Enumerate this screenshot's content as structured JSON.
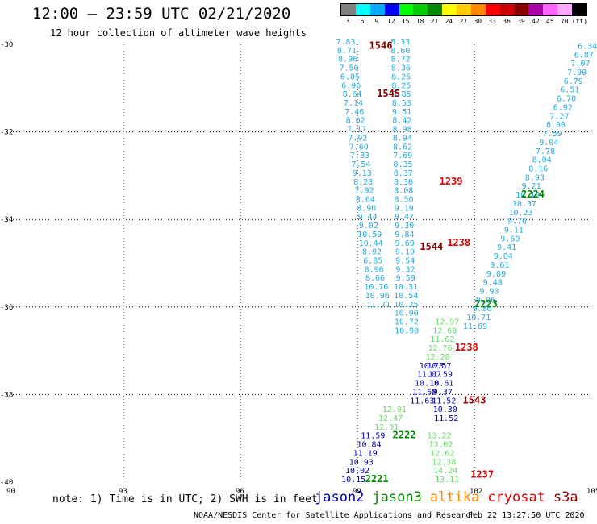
{
  "header": {
    "title": "12:00 – 23:59 UTC 02/21/2020",
    "subtitle": "12 hour collection of altimeter wave heights"
  },
  "legend": {
    "unit": "(ft)",
    "bins": [
      {
        "label": "3",
        "color": "#808080"
      },
      {
        "label": "6",
        "color": "#00ffff"
      },
      {
        "label": "9",
        "color": "#00aaff"
      },
      {
        "label": "12",
        "color": "#0000ff"
      },
      {
        "label": "15",
        "color": "#00ff00"
      },
      {
        "label": "18",
        "color": "#00cc00"
      },
      {
        "label": "21",
        "color": "#008800"
      },
      {
        "label": "24",
        "color": "#ffff00"
      },
      {
        "label": "27",
        "color": "#ffcc00"
      },
      {
        "label": "30",
        "color": "#ff8800"
      },
      {
        "label": "33",
        "color": "#ff0000"
      },
      {
        "label": "36",
        "color": "#cc0000"
      },
      {
        "label": "39",
        "color": "#880000"
      },
      {
        "label": "42",
        "color": "#aa00aa"
      },
      {
        "label": "45",
        "color": "#ff66ff"
      },
      {
        "label": "70",
        "color": "#ffaaff"
      },
      {
        "label": "",
        "color": "#000000"
      }
    ]
  },
  "axes": {
    "lat_ticks": [
      "-30",
      "-32",
      "-34",
      "-36",
      "-38",
      "-40"
    ],
    "lon_ticks": [
      "90",
      "93",
      "96",
      "99",
      "102",
      "105"
    ]
  },
  "colors": {
    "jason2": "#0000aa",
    "jason3": "#008800",
    "altika": "#ff8800",
    "cryosat": "#dd0000",
    "s3a": "#880000",
    "light_blue": "#22aadd",
    "light_green": "#66dd66"
  },
  "time_labels": [
    {
      "text": "1546",
      "lon": 99.6,
      "lat": -30.1,
      "color": "#880000"
    },
    {
      "text": "1545",
      "lon": 99.8,
      "lat": -31.2,
      "color": "#880000"
    },
    {
      "text": "1239",
      "lon": 101.4,
      "lat": -33.2,
      "color": "#dd0000"
    },
    {
      "text": "1238",
      "lon": 101.6,
      "lat": -34.6,
      "color": "#dd0000"
    },
    {
      "text": "1544",
      "lon": 100.9,
      "lat": -34.7,
      "color": "#880000"
    },
    {
      "text": "1238",
      "lon": 101.8,
      "lat": -37.0,
      "color": "#dd0000"
    },
    {
      "text": "1543",
      "lon": 102.0,
      "lat": -38.2,
      "color": "#880000"
    },
    {
      "text": "1237",
      "lon": 102.2,
      "lat": -39.9,
      "color": "#dd0000"
    },
    {
      "text": "2224",
      "lon": 103.5,
      "lat": -33.5,
      "color": "#008800"
    },
    {
      "text": "2223",
      "lon": 102.3,
      "lat": -36.0,
      "color": "#008800"
    },
    {
      "text": "2222",
      "lon": 100.2,
      "lat": -39.0,
      "color": "#008800"
    },
    {
      "text": "2221",
      "lon": 99.5,
      "lat": -40.0,
      "color": "#008800"
    }
  ],
  "tracks": [
    {
      "name": "track-a",
      "color": "#22aadd",
      "lon_start": 98.7,
      "lat_start": -30.0,
      "lon_step": 0.028,
      "lat_step": 0.2,
      "values": [
        "7.83",
        "8.71",
        "8.96",
        "7.50",
        "6.05",
        "6.96",
        "8.64",
        "7.14",
        "7.46",
        "8.02",
        "7.17",
        "7.92",
        "7.60",
        "7.33",
        "7.54",
        "9.13",
        "8.28",
        "7.92",
        "8.64",
        "8.90",
        "9.44",
        "9.02",
        "10.59",
        "10.44",
        "8.92",
        "6.85",
        "8.96",
        "8.66",
        "10.76",
        "10.96",
        "11.71"
      ]
    },
    {
      "name": "track-b",
      "color": "#22aadd",
      "lon_start": 100.1,
      "lat_start": -30.0,
      "lon_step": 0.005,
      "lat_step": 0.2,
      "values": [
        "8.33",
        "8.60",
        "8.72",
        "8.36",
        "8.25",
        "8.25",
        "8.85",
        "8.53",
        "9.51",
        "8.42",
        "8.98",
        "8.94",
        "8.62",
        "7.69",
        "8.35",
        "8.37",
        "8.30",
        "8.08",
        "8.50",
        "9.19",
        "9.47",
        "9.30",
        "9.84",
        "9.69",
        "9.19",
        "9.54",
        "9.32",
        "9.59",
        "10.31",
        "10.54",
        "10.25",
        "10.90",
        "10.72",
        "10.90"
      ]
    },
    {
      "name": "track-c",
      "color": "#22aadd",
      "lon_start": 104.9,
      "lat_start": -30.1,
      "lon_step": -0.09,
      "lat_step": 0.2,
      "values": [
        "6.34",
        "6.87",
        "7.07",
        "7.90",
        "6.79",
        "6.51",
        "6.70",
        "6.92",
        "7.27",
        "8.00",
        "7.59",
        "9.04",
        "7.78",
        "8.04",
        "8.16",
        "8.93",
        "9.21",
        "10.19",
        "10.37",
        "10.23",
        "9.76",
        "9.11",
        "9.69",
        "9.41",
        "9.04",
        "9.61",
        "9.09",
        "9.48",
        "9.90",
        "9.06",
        "9.86",
        "10.71",
        "11.69"
      ]
    },
    {
      "name": "track-d",
      "color": "#0000aa",
      "lon_start": 100.9,
      "lat_start": -37.4,
      "lon_step": -0.06,
      "lat_step": 0.2,
      "values": [
        "10.73",
        "11.07",
        "10.10",
        "11.68",
        "11.63"
      ]
    },
    {
      "name": "track-e",
      "color": "#66dd66",
      "lon_start": 99.95,
      "lat_start": -38.4,
      "lon_step": -0.1,
      "lat_step": 0.2,
      "values": [
        "12.01",
        "12.47",
        "12.01"
      ]
    },
    {
      "name": "track-f",
      "color": "#0000aa",
      "lon_start": 99.4,
      "lat_start": -39.0,
      "lon_step": -0.1,
      "lat_step": 0.2,
      "values": [
        "11.59",
        "10.84",
        "11.19",
        "10.93",
        "10.02",
        "10.15"
      ]
    },
    {
      "name": "track-g",
      "color": "#0000aa",
      "lon_start": 101.1,
      "lat_start": -37.4,
      "lon_step": 0.03,
      "lat_step": 0.2,
      "values": [
        "10.57",
        "11.59",
        "10.61",
        "9.37",
        "11.52",
        "10.30",
        "11.52"
      ]
    },
    {
      "name": "track-h",
      "color": "#66dd66",
      "lon_start": 101.3,
      "lat_start": -36.4,
      "lon_step": -0.06,
      "lat_step": 0.2,
      "values": [
        "12.97",
        "12.68",
        "11.62",
        "12.76",
        "12.28"
      ]
    },
    {
      "name": "track-i",
      "color": "#66dd66",
      "lon_start": 101.1,
      "lat_start": -39.0,
      "lon_step": 0.04,
      "lat_step": 0.2,
      "values": [
        "13.22",
        "13.02",
        "12.62",
        "12.38",
        "14.24",
        "13.11"
      ]
    }
  ],
  "notes": {
    "note": "note: 1) Time is in UTC; 2) SWH is in feet"
  },
  "satellites": [
    {
      "label": "jason2",
      "color": "#0000aa"
    },
    {
      "label": "jason3",
      "color": "#008800"
    },
    {
      "label": "altika",
      "color": "#ff8800"
    },
    {
      "label": "cryosat",
      "color": "#dd0000"
    },
    {
      "label": "s3a",
      "color": "#880000"
    }
  ],
  "footer": {
    "left": "NOAA/NESDIS Center for Satellite Applications and Research",
    "right": "Feb 22 13:27:50 UTC 2020"
  }
}
